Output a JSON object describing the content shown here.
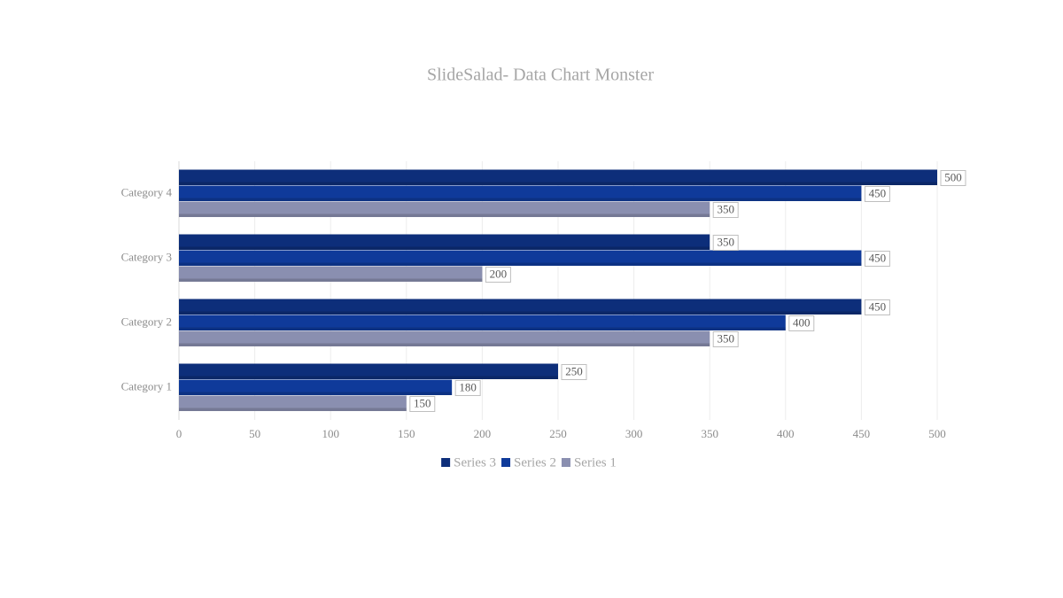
{
  "chart_data": {
    "type": "bar",
    "orientation": "horizontal",
    "title": "SlideSalad- Data Chart Monster",
    "categories": [
      "Category 1",
      "Category 2",
      "Category 3",
      "Category 4"
    ],
    "series": [
      {
        "name": "Series 1",
        "color": "#8a8fb0",
        "values": [
          150,
          350,
          200,
          350
        ]
      },
      {
        "name": "Series 2",
        "color": "#0f3a9a",
        "values": [
          180,
          400,
          450,
          450
        ]
      },
      {
        "name": "Series 3",
        "color": "#0d2e7a",
        "values": [
          250,
          450,
          350,
          500
        ]
      }
    ],
    "xlim": [
      0,
      500
    ],
    "xticks": [
      0,
      50,
      100,
      150,
      200,
      250,
      300,
      350,
      400,
      450,
      500
    ],
    "grid": true,
    "legend": "bottom"
  }
}
